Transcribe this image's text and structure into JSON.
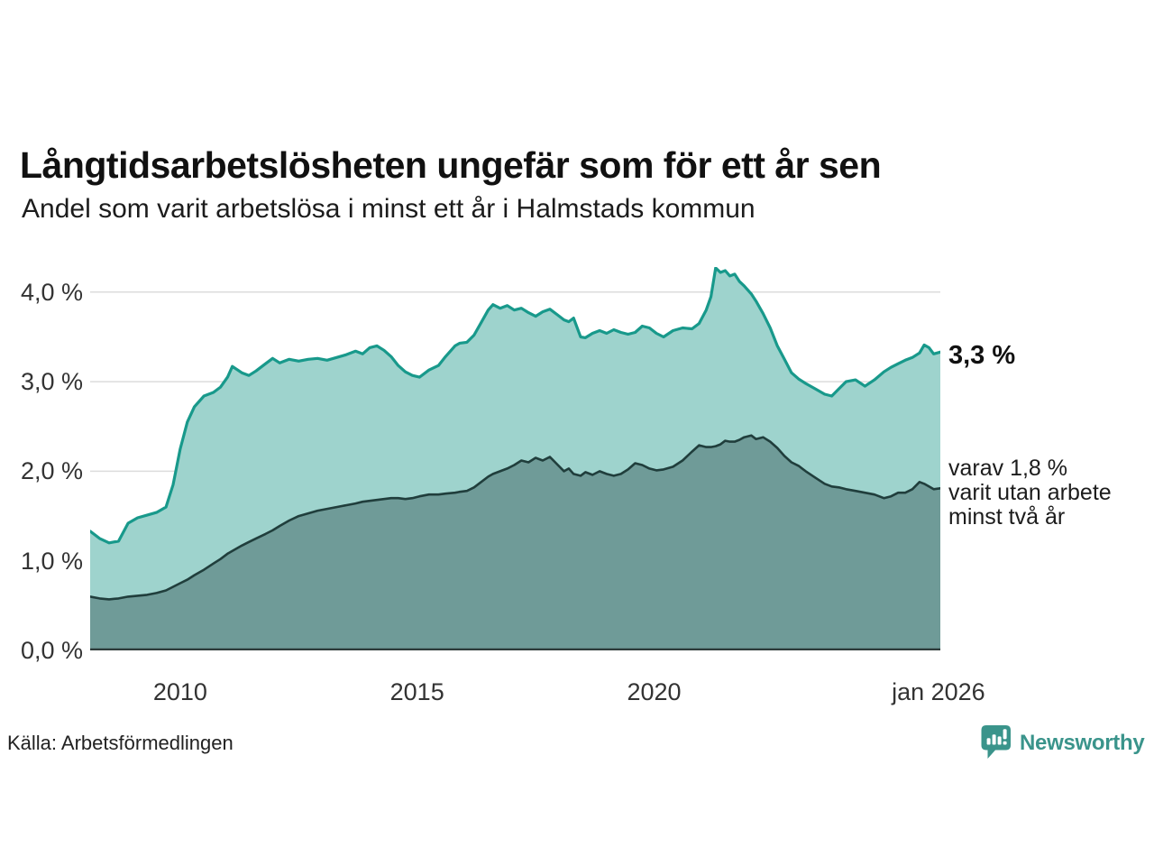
{
  "title": "Långtidsarbetslösheten ungefär som för ett år sen",
  "subtitle": "Andel som varit arbetslösa i minst ett år i Halmstads kommun",
  "annotations": {
    "latest_total": "3,3 %",
    "breakdown_line1": "varav 1,8 %",
    "breakdown_line2": "varit utan arbete",
    "breakdown_line3": "minst två år"
  },
  "footer": {
    "source": "Källa: Arbetsförmedlingen",
    "logo_text": "Newsworthy",
    "logo_icon": "bar-chart-speech-bubble-icon"
  },
  "colors": {
    "line_1yr": "#18998b",
    "fill_1yr": "#9ed3cd",
    "line_2yr": "#203e3c",
    "fill_2yr": "#6f9b98",
    "grid": "#dcdcdc",
    "axis": "#2e3b3a",
    "tick_text": "#333333",
    "logo": "#3a948b"
  },
  "chart_data": {
    "type": "area",
    "title": "Långtidsarbetslösheten ungefär som för ett år sen",
    "subtitle": "Andel som varit arbetslösa i minst ett år i Halmstads kommun",
    "source": "Källa: Arbetsförmedlingen",
    "x_unit": "decimal_year",
    "xlim": [
      2008.1,
      2026.04
    ],
    "ylim": [
      0,
      4.28
    ],
    "grid": "horizontal",
    "legend_position": "right-annotations",
    "xticks": [
      {
        "label": "2010",
        "x": 2010.0
      },
      {
        "label": "2015",
        "x": 2015.0
      },
      {
        "label": "2020",
        "x": 2020.0
      },
      {
        "label": "jan 2026",
        "x": 2026.0
      }
    ],
    "yticks": [
      {
        "label": "0,0 %",
        "v": 0.0
      },
      {
        "label": "1,0 %",
        "v": 1.0
      },
      {
        "label": "2,0 %",
        "v": 2.0
      },
      {
        "label": "3,0 %",
        "v": 3.0
      },
      {
        "label": "4,0 %",
        "v": 4.0
      }
    ],
    "x": [
      2008.1,
      2008.3,
      2008.5,
      2008.7,
      2008.9,
      2009.1,
      2009.3,
      2009.5,
      2009.7,
      2009.85,
      2010.0,
      2010.15,
      2010.3,
      2010.5,
      2010.7,
      2010.85,
      2011.0,
      2011.1,
      2011.3,
      2011.45,
      2011.6,
      2011.8,
      2011.95,
      2012.1,
      2012.3,
      2012.5,
      2012.7,
      2012.9,
      2013.1,
      2013.3,
      2013.5,
      2013.7,
      2013.85,
      2014.0,
      2014.15,
      2014.3,
      2014.45,
      2014.6,
      2014.75,
      2014.9,
      2015.05,
      2015.25,
      2015.45,
      2015.6,
      2015.8,
      2015.9,
      2016.05,
      2016.2,
      2016.35,
      2016.5,
      2016.6,
      2016.75,
      2016.9,
      2017.05,
      2017.2,
      2017.35,
      2017.5,
      2017.65,
      2017.8,
      2017.95,
      2018.1,
      2018.2,
      2018.3,
      2018.45,
      2018.55,
      2018.7,
      2018.85,
      2019.0,
      2019.15,
      2019.3,
      2019.45,
      2019.6,
      2019.75,
      2019.9,
      2020.05,
      2020.2,
      2020.4,
      2020.6,
      2020.8,
      2020.95,
      2021.1,
      2021.2,
      2021.3,
      2021.4,
      2021.5,
      2021.6,
      2021.7,
      2021.8,
      2021.9,
      2022.05,
      2022.15,
      2022.3,
      2022.45,
      2022.6,
      2022.75,
      2022.9,
      2023.05,
      2023.2,
      2023.4,
      2023.6,
      2023.75,
      2023.9,
      2024.05,
      2024.25,
      2024.45,
      2024.65,
      2024.85,
      2025.0,
      2025.15,
      2025.3,
      2025.45,
      2025.6,
      2025.7,
      2025.8,
      2025.9,
      2026.04
    ],
    "series": [
      {
        "name": "Andel som varit arbetslösa minst ett år",
        "end_label": "3,3 %",
        "end_value": 3.3,
        "values": [
          1.33,
          1.25,
          1.2,
          1.22,
          1.42,
          1.48,
          1.51,
          1.54,
          1.6,
          1.85,
          2.25,
          2.55,
          2.72,
          2.84,
          2.88,
          2.94,
          3.05,
          3.17,
          3.1,
          3.07,
          3.12,
          3.2,
          3.26,
          3.21,
          3.25,
          3.23,
          3.25,
          3.26,
          3.24,
          3.27,
          3.3,
          3.34,
          3.31,
          3.38,
          3.4,
          3.35,
          3.28,
          3.18,
          3.11,
          3.07,
          3.05,
          3.13,
          3.18,
          3.28,
          3.4,
          3.43,
          3.44,
          3.52,
          3.66,
          3.8,
          3.86,
          3.82,
          3.85,
          3.8,
          3.82,
          3.77,
          3.73,
          3.78,
          3.81,
          3.75,
          3.69,
          3.67,
          3.71,
          3.5,
          3.49,
          3.54,
          3.57,
          3.54,
          3.58,
          3.55,
          3.53,
          3.55,
          3.62,
          3.6,
          3.54,
          3.5,
          3.57,
          3.6,
          3.59,
          3.65,
          3.8,
          3.95,
          4.27,
          4.22,
          4.24,
          4.18,
          4.2,
          4.12,
          4.07,
          3.98,
          3.9,
          3.76,
          3.6,
          3.4,
          3.25,
          3.1,
          3.03,
          2.98,
          2.92,
          2.86,
          2.84,
          2.92,
          3.0,
          3.02,
          2.95,
          3.02,
          3.11,
          3.16,
          3.2,
          3.24,
          3.27,
          3.32,
          3.41,
          3.38,
          3.31,
          3.33
        ]
      },
      {
        "name": "varav varit utan arbete minst två år",
        "end_label": "varav 1,8 % varit utan arbete minst två år",
        "end_value": 1.8,
        "values": [
          0.6,
          0.58,
          0.57,
          0.58,
          0.6,
          0.61,
          0.62,
          0.64,
          0.67,
          0.71,
          0.75,
          0.79,
          0.84,
          0.9,
          0.97,
          1.02,
          1.08,
          1.11,
          1.17,
          1.21,
          1.25,
          1.3,
          1.34,
          1.39,
          1.45,
          1.5,
          1.53,
          1.56,
          1.58,
          1.6,
          1.62,
          1.64,
          1.66,
          1.67,
          1.68,
          1.69,
          1.7,
          1.7,
          1.69,
          1.7,
          1.72,
          1.74,
          1.74,
          1.75,
          1.76,
          1.77,
          1.78,
          1.82,
          1.88,
          1.94,
          1.97,
          2.0,
          2.03,
          2.07,
          2.12,
          2.1,
          2.15,
          2.12,
          2.16,
          2.08,
          2.0,
          2.03,
          1.97,
          1.95,
          1.99,
          1.96,
          2.0,
          1.97,
          1.95,
          1.97,
          2.02,
          2.09,
          2.07,
          2.03,
          2.01,
          2.02,
          2.05,
          2.12,
          2.22,
          2.29,
          2.27,
          2.27,
          2.28,
          2.3,
          2.34,
          2.33,
          2.33,
          2.35,
          2.38,
          2.4,
          2.36,
          2.38,
          2.33,
          2.26,
          2.17,
          2.1,
          2.06,
          2.0,
          1.93,
          1.86,
          1.83,
          1.82,
          1.8,
          1.78,
          1.76,
          1.74,
          1.7,
          1.72,
          1.76,
          1.76,
          1.8,
          1.88,
          1.86,
          1.83,
          1.8,
          1.81
        ]
      }
    ]
  }
}
